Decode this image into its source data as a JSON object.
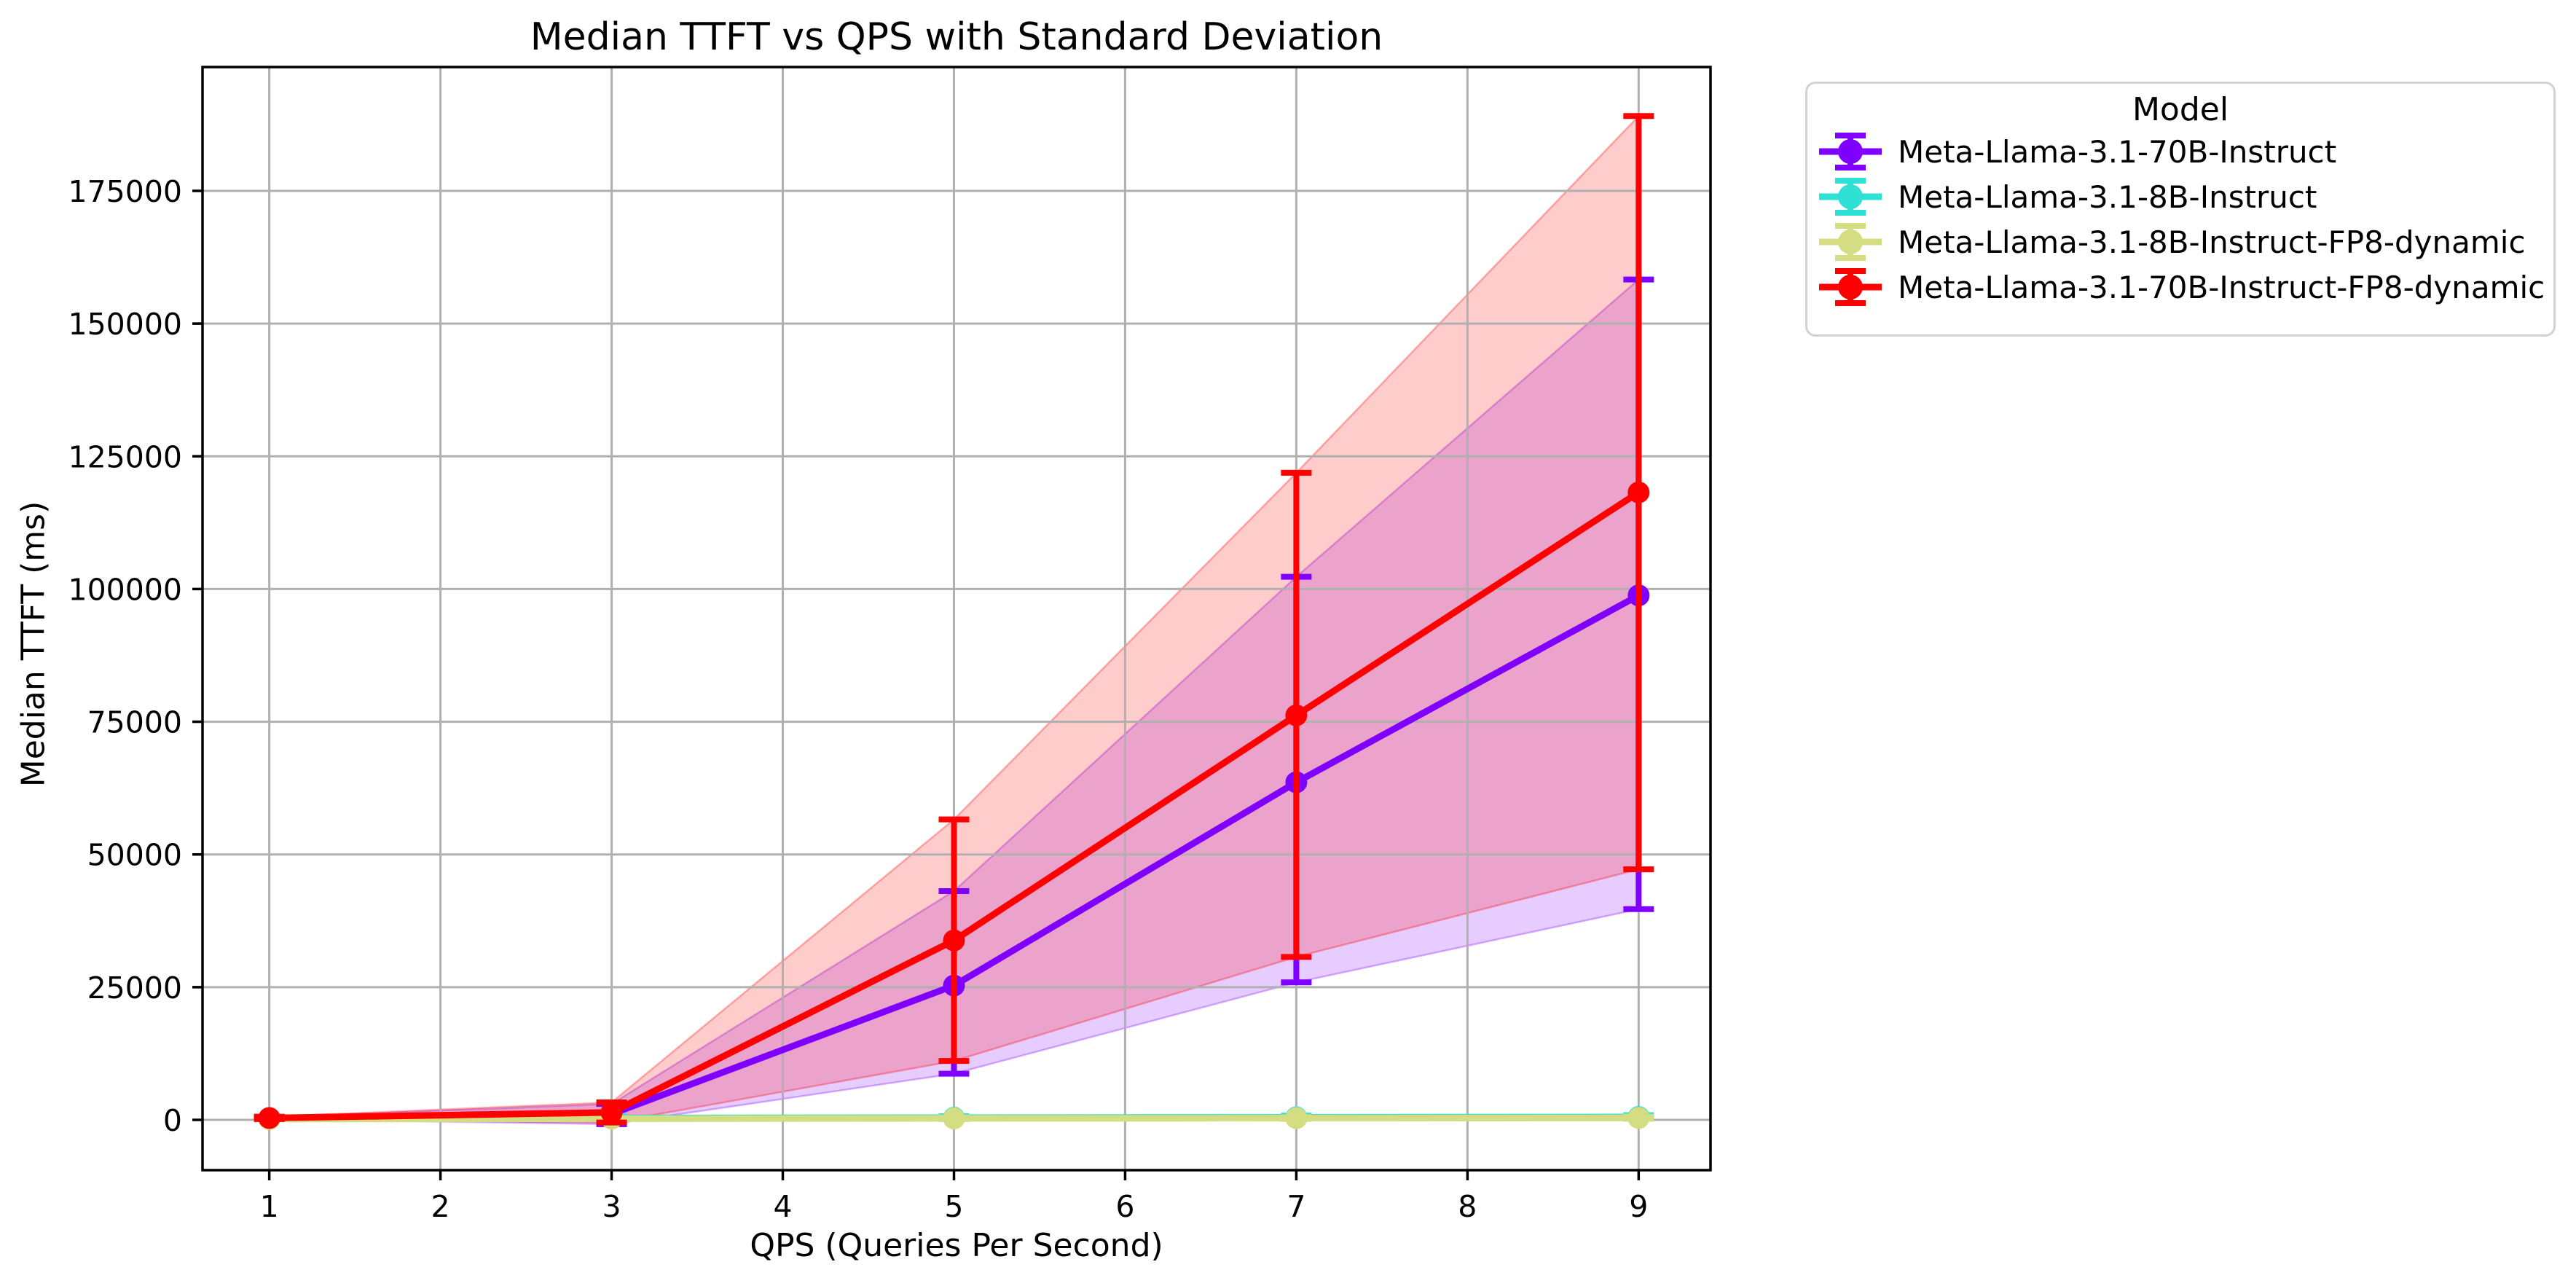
{
  "figure": {
    "background": "#ffffff",
    "text_color": "#000000",
    "grid_color": "#b0b0b0",
    "axis_color": "#000000",
    "legend_border_color": "#d2d2d2"
  },
  "chart_data": {
    "type": "line",
    "title": "Median TTFT vs QPS with Standard Deviation",
    "xlabel": "QPS (Queries Per Second)",
    "ylabel": "Median TTFT (ms)",
    "x_ticks": [
      1,
      2,
      3,
      4,
      5,
      6,
      7,
      8,
      9
    ],
    "y_ticks": [
      0,
      25000,
      50000,
      75000,
      100000,
      125000,
      150000,
      175000
    ],
    "xlim": [
      0.61,
      9.42
    ],
    "ylim": [
      -9470,
      198330
    ],
    "grid": true,
    "grid_position": "above-bands-below-lines",
    "band_alpha": 0.2,
    "band_represents": "median ± standard deviation",
    "legend": {
      "title": "Model",
      "position": "outside-upper-right"
    },
    "series": [
      {
        "name": "Meta-Llama-3.1-70B-Instruct",
        "color": "#8000ff",
        "x": [
          1,
          3,
          5,
          7,
          9
        ],
        "median": [
          300,
          1100,
          25300,
          63600,
          98800
        ],
        "upper": [
          500,
          3000,
          43100,
          102300,
          158300
        ],
        "lower": [
          150,
          -800,
          8700,
          25900,
          39700
        ]
      },
      {
        "name": "Meta-Llama-3.1-8B-Instruct",
        "color": "#2fe0d5",
        "x": [
          1,
          3,
          5,
          7,
          9
        ],
        "median": [
          250,
          350,
          420,
          480,
          550
        ],
        "upper": [
          400,
          600,
          700,
          800,
          900
        ],
        "lower": [
          150,
          200,
          250,
          300,
          350
        ]
      },
      {
        "name": "Meta-Llama-3.1-8B-Instruct-FP8-dynamic",
        "color": "#d5dd82",
        "x": [
          1,
          3,
          5,
          7,
          9
        ],
        "median": [
          150,
          220,
          280,
          320,
          360
        ],
        "upper": [
          250,
          350,
          450,
          500,
          600
        ],
        "lower": [
          80,
          120,
          150,
          180,
          200
        ]
      },
      {
        "name": "Meta-Llama-3.1-70B-Instruct-FP8-dynamic",
        "color": "#ff0000",
        "x": [
          1,
          3,
          5,
          7,
          9
        ],
        "median": [
          350,
          1400,
          33800,
          76200,
          118200
        ],
        "upper": [
          600,
          3300,
          56600,
          121900,
          189100
        ],
        "lower": [
          150,
          -500,
          11100,
          30700,
          47200
        ]
      }
    ]
  }
}
